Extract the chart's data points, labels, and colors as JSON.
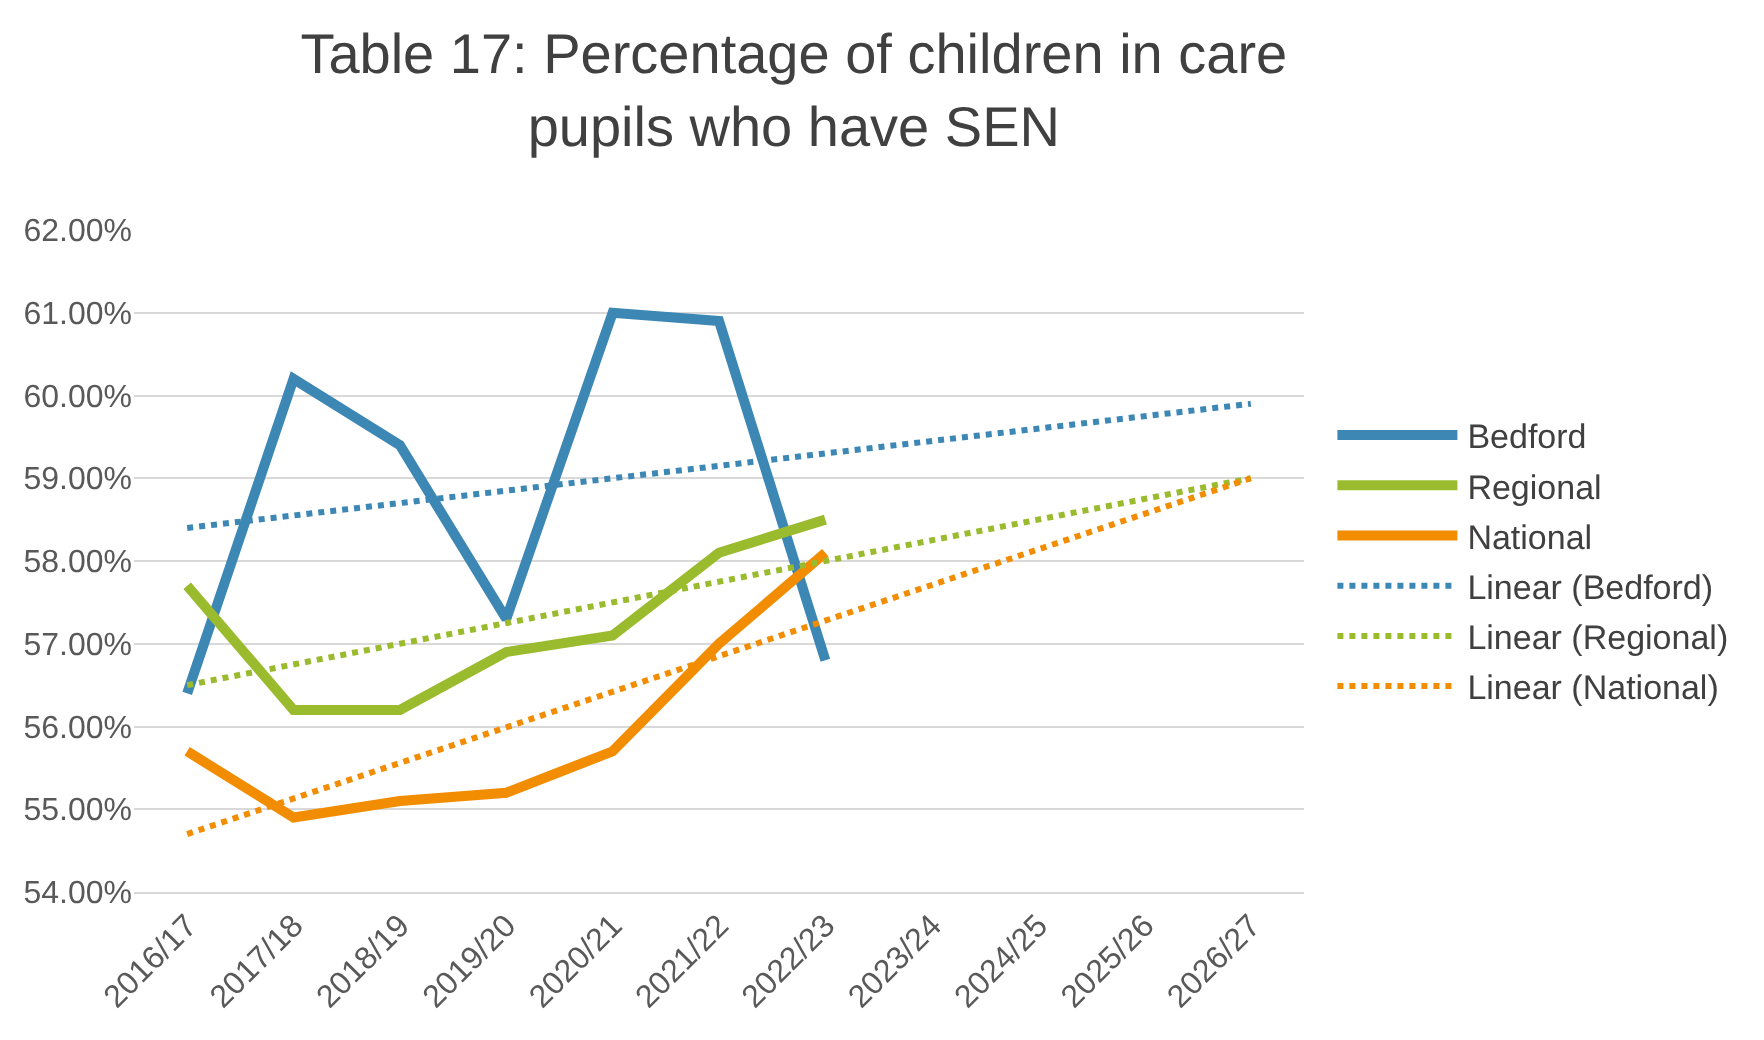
{
  "chart_data": {
    "type": "line",
    "title": "Table 17: Percentage of children in care pupils who have SEN",
    "categories": [
      "2016/17",
      "2017/18",
      "2018/19",
      "2019/20",
      "2020/21",
      "2021/22",
      "2022/23",
      "2023/24",
      "2024/25",
      "2025/26",
      "2026/27"
    ],
    "series": [
      {
        "name": "Bedford",
        "color": "#3d87b5",
        "values": [
          56.4,
          60.2,
          59.4,
          57.3,
          61.0,
          60.9,
          56.8,
          null,
          null,
          null,
          null
        ]
      },
      {
        "name": "Regional",
        "color": "#9bbb2e",
        "values": [
          57.7,
          56.2,
          56.2,
          56.9,
          57.1,
          58.1,
          58.5,
          null,
          null,
          null,
          null
        ]
      },
      {
        "name": "National",
        "color": "#f28c00",
        "values": [
          55.7,
          54.9,
          55.1,
          55.2,
          55.7,
          57.0,
          58.1,
          null,
          null,
          null,
          null
        ]
      },
      {
        "name": "Linear (Bedford)",
        "color": "#3d87b5",
        "line_style": "dotted",
        "x": [
          "2016/17",
          "2026/27"
        ],
        "values": [
          58.4,
          59.9
        ]
      },
      {
        "name": "Linear (Regional)",
        "color": "#9bbb2e",
        "line_style": "dotted",
        "x": [
          "2016/17",
          "2026/27"
        ],
        "values": [
          56.5,
          59.0
        ]
      },
      {
        "name": "Linear (National)",
        "color": "#f28c00",
        "line_style": "dotted",
        "x": [
          "2016/17",
          "2026/27"
        ],
        "values": [
          54.7,
          59.0
        ]
      }
    ],
    "ylim": [
      54,
      62
    ],
    "yticks": [
      {
        "value": 54,
        "label": "54.00%"
      },
      {
        "value": 55,
        "label": "55.00%"
      },
      {
        "value": 56,
        "label": "56.00%"
      },
      {
        "value": 57,
        "label": "57.00%"
      },
      {
        "value": 58,
        "label": "58.00%"
      },
      {
        "value": 59,
        "label": "59.00%"
      },
      {
        "value": 60,
        "label": "60.00%"
      },
      {
        "value": 61,
        "label": "61.00%"
      },
      {
        "value": 62,
        "label": "62.00%"
      }
    ],
    "grid": "y",
    "legend": "right",
    "line_style": "solid",
    "marker": "none"
  }
}
